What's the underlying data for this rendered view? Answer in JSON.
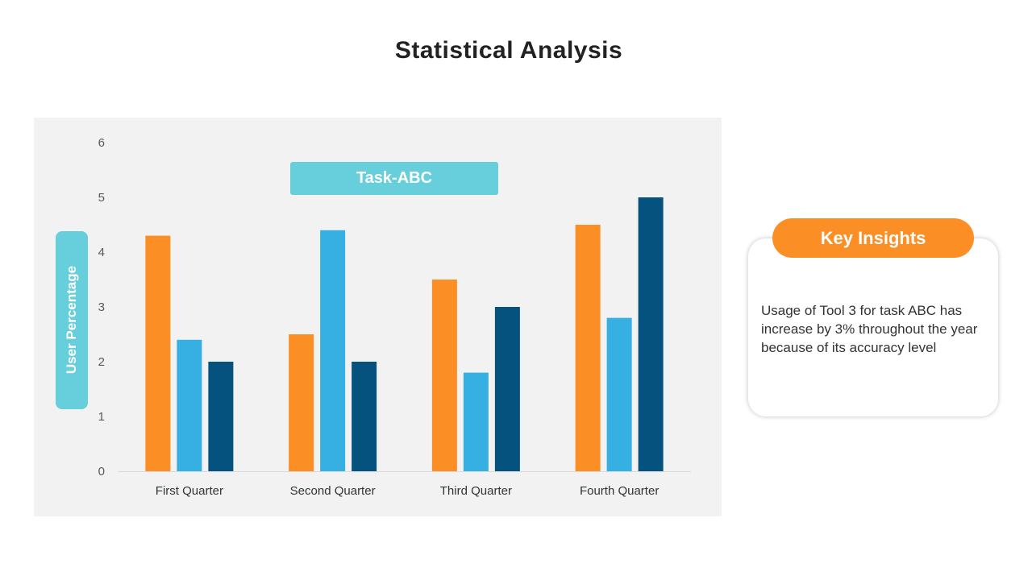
{
  "slide": {
    "title": "Statistical Analysis"
  },
  "chart_data": {
    "type": "bar",
    "title": "Task-ABC",
    "ylabel": "User Percentage",
    "xlabel": "",
    "categories": [
      "First Quarter",
      "Second Quarter",
      "Third Quarter",
      "Fourth Quarter"
    ],
    "series": [
      {
        "values": [
          4.3,
          2.5,
          3.5,
          4.5
        ],
        "color": "#fb8f26"
      },
      {
        "values": [
          2.4,
          4.4,
          1.8,
          2.8
        ],
        "color": "#36b0e3"
      },
      {
        "values": [
          2.0,
          2.0,
          3.0,
          5.0
        ],
        "color": "#05527f"
      }
    ],
    "ylim": [
      0,
      6
    ],
    "yticks": [
      "0",
      "1",
      "2",
      "3",
      "4",
      "5",
      "6"
    ],
    "grid": false,
    "legend": "none"
  },
  "insights": {
    "header": "Key Insights",
    "text": "Usage of Tool 3 for task ABC has increase by 3% throughout the year because of its accuracy level"
  }
}
